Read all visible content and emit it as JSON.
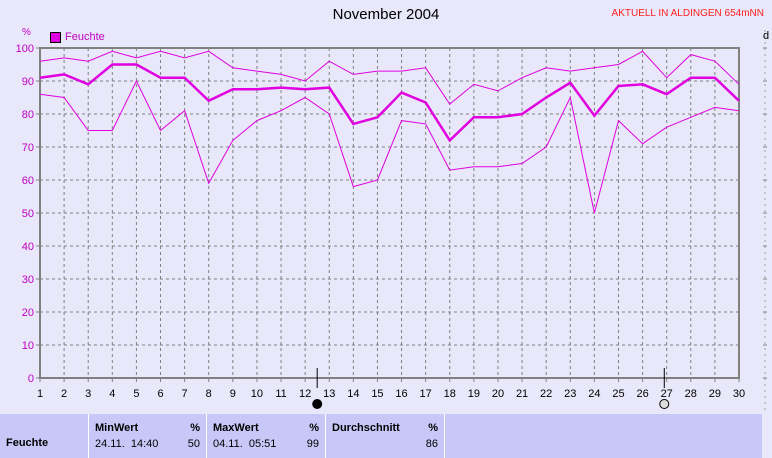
{
  "title": "November 2004",
  "status": "AKTUELL IN ALDINGEN 654mNN",
  "right_axis_label": "d",
  "chart_data": {
    "type": "line",
    "title": "November 2004",
    "ylabel": "%",
    "ylim": [
      0,
      100
    ],
    "xlim": [
      1,
      30
    ],
    "yticks": [
      0,
      10,
      20,
      30,
      40,
      50,
      60,
      70,
      80,
      90,
      100
    ],
    "x": [
      1,
      2,
      3,
      4,
      5,
      6,
      7,
      8,
      9,
      10,
      11,
      12,
      13,
      14,
      15,
      16,
      17,
      18,
      19,
      20,
      21,
      22,
      23,
      24,
      25,
      26,
      27,
      28,
      29,
      30
    ],
    "grid": true,
    "legend": "top-left",
    "color": "#e000e0",
    "series": [
      {
        "name": "Feuchte",
        "values": [
          91,
          92,
          89,
          95,
          95,
          91,
          91,
          84,
          87.5,
          87.5,
          88,
          87.5,
          88,
          77,
          79,
          86.5,
          83.5,
          72,
          79,
          79,
          80,
          85,
          89.5,
          79.5,
          88.5,
          89,
          86,
          91,
          91,
          84
        ]
      },
      {
        "values": [
          96,
          97,
          96,
          99,
          97,
          99,
          97,
          99,
          94,
          93,
          92,
          90,
          96,
          92,
          93,
          93,
          94,
          83,
          89,
          87,
          91,
          94,
          93,
          94,
          95,
          99,
          91,
          98,
          96,
          89
        ]
      },
      {
        "values": [
          86,
          85,
          75,
          75,
          90,
          75,
          81,
          59,
          72,
          78,
          81,
          85,
          80,
          58,
          60,
          78,
          77,
          63,
          64,
          64,
          65,
          70,
          85,
          50,
          78,
          71,
          76,
          79,
          82,
          81
        ]
      }
    ],
    "moon_phases": [
      {
        "day": 12.5,
        "phase": "new-moon"
      },
      {
        "day": 26.9,
        "phase": "full-moon"
      }
    ]
  },
  "table": {
    "row_label": "Feuchte",
    "min": {
      "header": "MinWert",
      "unit": "%",
      "time": "24.11.  14:40",
      "value": "50"
    },
    "max": {
      "header": "MaxWert",
      "unit": "%",
      "time": "04.11.  05:51",
      "value": "99"
    },
    "avg": {
      "header": "Durchschnitt",
      "unit": "%",
      "value": "86"
    }
  }
}
